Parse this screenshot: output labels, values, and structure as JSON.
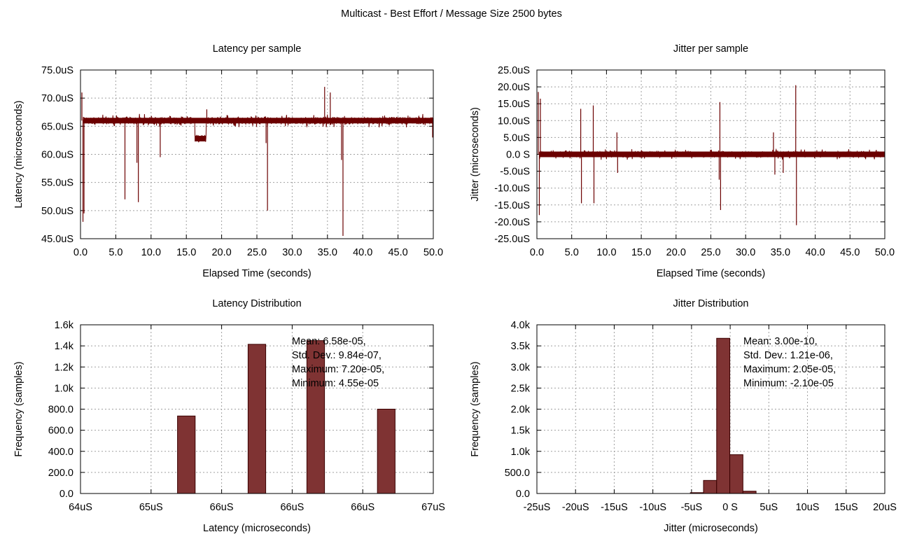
{
  "figure_title": "Multicast - Best Effort / Message Size 2500 bytes",
  "colors": {
    "series_line": "#6b0000",
    "histogram_fill": "#7f3333",
    "histogram_stroke": "#3a0000",
    "grid": "#a0a0a0"
  },
  "chart_data": [
    {
      "id": "latency_per_sample",
      "type": "line",
      "title": "Latency per sample",
      "xlabel": "Elapsed Time (seconds)",
      "ylabel": "Latency (microseconds)",
      "xlim": [
        0,
        50
      ],
      "ylim": [
        45,
        75
      ],
      "x_ticks": [
        "0.0",
        "5.0",
        "10.0",
        "15.0",
        "20.0",
        "25.0",
        "30.0",
        "35.0",
        "40.0",
        "45.0",
        "50.0"
      ],
      "y_ticks": [
        "45.0uS",
        "50.0uS",
        "55.0uS",
        "60.0uS",
        "65.0uS",
        "70.0uS",
        "75.0uS"
      ],
      "grid": true,
      "baseline": 66.0,
      "noise_band": [
        64.8,
        67.2
      ],
      "segments": [
        {
          "x_start": 16.2,
          "x_end": 17.8,
          "level": 62.8
        }
      ],
      "spikes": [
        {
          "x": 0.2,
          "y": 71.0
        },
        {
          "x": 0.35,
          "y": 48.0
        },
        {
          "x": 0.5,
          "y": 49.5
        },
        {
          "x": 6.3,
          "y": 52.0
        },
        {
          "x": 8.0,
          "y": 58.5
        },
        {
          "x": 8.2,
          "y": 51.5
        },
        {
          "x": 11.3,
          "y": 59.5
        },
        {
          "x": 17.9,
          "y": 68.0
        },
        {
          "x": 26.3,
          "y": 62.0
        },
        {
          "x": 26.5,
          "y": 50.0
        },
        {
          "x": 34.6,
          "y": 72.0
        },
        {
          "x": 35.4,
          "y": 71.0
        },
        {
          "x": 37.2,
          "y": 45.5
        },
        {
          "x": 37.0,
          "y": 59.0
        },
        {
          "x": 49.9,
          "y": 63.0
        }
      ]
    },
    {
      "id": "jitter_per_sample",
      "type": "line",
      "title": "Jitter per sample",
      "xlabel": "Elapsed Time (seconds)",
      "ylabel": "Jitter (microseconds)",
      "xlim": [
        0,
        50
      ],
      "ylim": [
        -25,
        25
      ],
      "x_ticks": [
        "0.0",
        "5.0",
        "10.0",
        "15.0",
        "20.0",
        "25.0",
        "30.0",
        "35.0",
        "40.0",
        "45.0",
        "50.0"
      ],
      "y_ticks": [
        "-25.0uS",
        "-20.0uS",
        "-15.0uS",
        "-10.0uS",
        "-5.0uS",
        "0.0 S",
        "5.0uS",
        "10.0uS",
        "15.0uS",
        "20.0uS",
        "25.0uS"
      ],
      "grid": true,
      "baseline": 0.0,
      "noise_band": [
        -1.6,
        1.6
      ],
      "spikes": [
        {
          "x": 0.2,
          "y": 18.5
        },
        {
          "x": 0.35,
          "y": -18.0
        },
        {
          "x": 0.5,
          "y": 16.5
        },
        {
          "x": 6.3,
          "y": 13.5
        },
        {
          "x": 6.4,
          "y": -14.5
        },
        {
          "x": 8.1,
          "y": 14.5
        },
        {
          "x": 8.2,
          "y": -14.5
        },
        {
          "x": 11.5,
          "y": 6.5
        },
        {
          "x": 11.6,
          "y": -5.5
        },
        {
          "x": 26.3,
          "y": 15.5
        },
        {
          "x": 26.4,
          "y": -16.5
        },
        {
          "x": 26.2,
          "y": -7.5
        },
        {
          "x": 34.0,
          "y": 6.5
        },
        {
          "x": 34.2,
          "y": -6.0
        },
        {
          "x": 35.4,
          "y": -5.5
        },
        {
          "x": 37.2,
          "y": 20.5
        },
        {
          "x": 37.3,
          "y": -21.0
        }
      ]
    },
    {
      "id": "latency_distribution",
      "type": "bar",
      "title": "Latency Distribution",
      "xlabel": "Latency (microseconds)",
      "ylabel": "Frequency (samples)",
      "xlim": [
        64,
        67
      ],
      "ylim": [
        0,
        1600
      ],
      "x_ticks": [
        "64uS",
        "65uS",
        "66uS",
        "66uS",
        "66uS",
        "67uS"
      ],
      "y_ticks": [
        "0.0",
        "200.0",
        "400.0",
        "600.0",
        "800.0",
        "1.0k",
        "1.2k",
        "1.4k",
        "1.6k"
      ],
      "grid": true,
      "bar_width": 0.15,
      "bars": [
        {
          "x": 64.9,
          "value": 735
        },
        {
          "x": 65.5,
          "value": 1415
        },
        {
          "x": 66.0,
          "value": 1450
        },
        {
          "x": 66.6,
          "value": 800
        }
      ],
      "stats": [
        "Mean: 6.58e-05,",
        "Std. Dev.: 9.84e-07,",
        "Maximum: 7.20e-05,",
        "Minimum: 4.55e-05"
      ]
    },
    {
      "id": "jitter_distribution",
      "type": "bar",
      "title": "Jitter Distribution",
      "xlabel": "Jitter (microseconds)",
      "ylabel": "Frequency (samples)",
      "xlim": [
        -25,
        20
      ],
      "ylim": [
        0,
        4000
      ],
      "x_ticks": [
        "-25uS",
        "-20uS",
        "-15uS",
        "-10uS",
        "-5uS",
        "0 S",
        "5uS",
        "10uS",
        "15uS",
        "20uS"
      ],
      "y_ticks": [
        "0.0",
        "500.0",
        "1.0k",
        "1.5k",
        "2.0k",
        "2.5k",
        "3.0k",
        "3.5k",
        "4.0k"
      ],
      "grid": true,
      "bar_width": 1.7,
      "bars": [
        {
          "x": -4.3,
          "value": 20
        },
        {
          "x": -2.6,
          "value": 310
        },
        {
          "x": -0.9,
          "value": 3680
        },
        {
          "x": 0.8,
          "value": 920
        },
        {
          "x": 2.5,
          "value": 55
        }
      ],
      "stats": [
        "Mean: 3.00e-10,",
        "Std. Dev.: 1.21e-06,",
        "Maximum: 2.05e-05,",
        "Minimum: -2.10e-05"
      ]
    }
  ]
}
